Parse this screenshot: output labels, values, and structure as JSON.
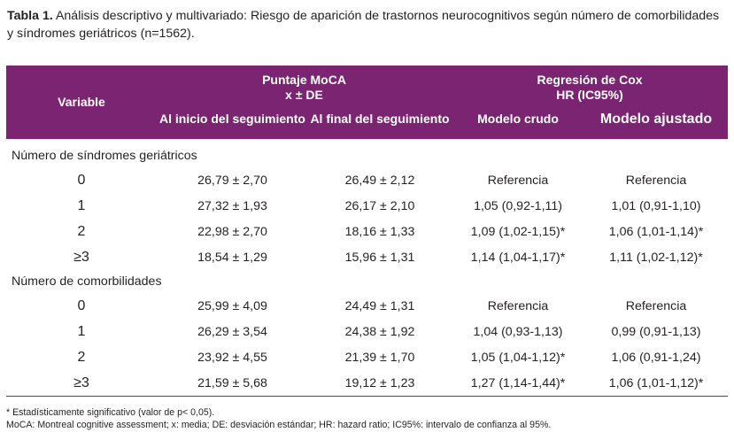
{
  "caption": {
    "label": "Tabla 1.",
    "text": "Análisis descriptivo y multivariado: Riesgo de aparición de trastornos neurocognitivos según número de comorbilidades y síndromes geriátricos (n=1562)."
  },
  "header": {
    "variable": "Variable",
    "moca_line1": "Puntaje MoCA",
    "moca_line2": "x ± DE",
    "cox_line1": "Regresión de Cox",
    "cox_line2": "HR (IC95%)",
    "col_inicio": "Al inicio del seguimiento",
    "col_final": "Al final del seguimiento",
    "col_crudo": "Modelo crudo",
    "col_ajustado": "Modelo ajustado"
  },
  "groups": [
    {
      "label": "Número de síndromes geriátricos",
      "rows": [
        {
          "cat": "0",
          "inicio": "26,79 ± 2,70",
          "final": "26,49 ± 2,12",
          "crudo": "Referencia",
          "ajustado": "Referencia"
        },
        {
          "cat": "1",
          "inicio": "27,32 ± 1,93",
          "final": "26,17 ± 2,10",
          "crudo": "1,05 (0,92-1,11)",
          "ajustado": "1,01 (0,91-1,10)"
        },
        {
          "cat": "2",
          "inicio": "22,98 ± 2,70",
          "final": "18,16 ± 1,33",
          "crudo": "1,09 (1,02-1,15)*",
          "ajustado": "1,06 (1,01-1,14)*"
        },
        {
          "cat": "≥3",
          "inicio": "18,54 ± 1,29",
          "final": "15,96 ± 1,31",
          "crudo": "1,14 (1,04-1,17)*",
          "ajustado": "1,11 (1,02-1,12)*"
        }
      ]
    },
    {
      "label": "Número de comorbilidades",
      "rows": [
        {
          "cat": "0",
          "inicio": "25,99 ± 4,09",
          "final": "24,49 ± 1,31",
          "crudo": "Referencia",
          "ajustado": "Referencia"
        },
        {
          "cat": "1",
          "inicio": "26,29 ± 3,54",
          "final": "24,38 ± 1,92",
          "crudo": "1,04 (0,93-1,13)",
          "ajustado": "0,99 (0,91-1,13)"
        },
        {
          "cat": "2",
          "inicio": "23,92 ± 4,55",
          "final": "21,39 ± 1,70",
          "crudo": "1,05 (1,04-1,12)*",
          "ajustado": "1,06 (0,91-1,24)"
        },
        {
          "cat": "≥3",
          "inicio": "21,59 ± 5,68",
          "final": "19,12 ± 1,23",
          "crudo": "1,27 (1,14-1,44)*",
          "ajustado": "1,06 (1,01-1,12)*"
        }
      ]
    }
  ],
  "footnotes": {
    "line1": "* Estadísticamente significativo (valor de p< 0,05).",
    "line2": "MoCA: Montreal cognitive assessment; x: media; DE: desviación estándar; HR: hazard ratio; IC95%: intervalo de confianza al 95%."
  },
  "colors": {
    "header_bg": "#7b2472",
    "header_text": "#ffffff",
    "body_text": "#231f20"
  }
}
